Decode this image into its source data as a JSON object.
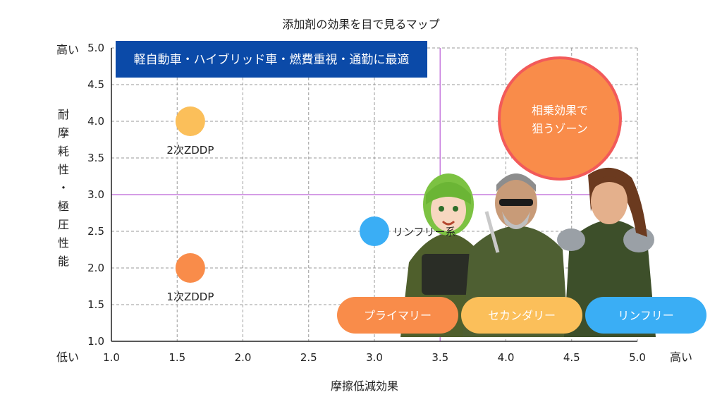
{
  "chart_data": {
    "type": "scatter",
    "title": "添加剤の効果を目で見るマップ",
    "xlabel": "摩擦低減効果",
    "ylabel": "耐摩耗性・極圧性能",
    "x_ticks": [
      1.0,
      1.5,
      2.0,
      2.5,
      3.0,
      3.5,
      4.0,
      4.5,
      5.0
    ],
    "x_tick_labels": [
      "1.0",
      "1.5",
      "2.0",
      "2.5",
      "3.0",
      "3.5",
      "4.0",
      "4.5",
      "5.0"
    ],
    "y_ticks": [
      1.0,
      1.5,
      2.0,
      2.5,
      3.0,
      3.5,
      4.0,
      4.5,
      5.0
    ],
    "y_tick_labels": [
      "1.0",
      "1.5",
      "2.0",
      "2.5",
      "3.0",
      "3.5",
      "4.0",
      "4.5",
      "5.0"
    ],
    "xlim": [
      1.0,
      5.0
    ],
    "ylim": [
      1.0,
      5.0
    ],
    "grid": true,
    "axis_end_labels": {
      "x_low": "低い",
      "x_high": "高い",
      "y_low": "低い",
      "y_high": "高い"
    },
    "reference_lines": {
      "x": 3.5,
      "y": 3.0,
      "color": "#c77dde"
    },
    "points": [
      {
        "label": "2次ZDDP",
        "x": 1.6,
        "y": 4.0,
        "color": "#fbbf5a"
      },
      {
        "label": "1次ZDDP",
        "x": 1.6,
        "y": 2.0,
        "color": "#f98c4a"
      },
      {
        "label": "リンフリー系",
        "x": 3.0,
        "y": 2.5,
        "color": "#3aaef5"
      }
    ],
    "annotations": {
      "top_banner": {
        "text": "軽自動車・ハイブリッド車・燃費重視・通勤に最適",
        "color": "#0b4aa8"
      },
      "synergy_zone": {
        "text_line1": "相乗効果で",
        "text_line2": "狙うゾーン",
        "fill": "#f98c4a",
        "stroke": "#f25a5a"
      }
    },
    "legend_pills": [
      {
        "label": "プライマリー",
        "color": "#f98c4a"
      },
      {
        "label": "セカンダリー",
        "color": "#fbbf5a"
      },
      {
        "label": "リンフリー",
        "color": "#3aaef5"
      }
    ]
  }
}
